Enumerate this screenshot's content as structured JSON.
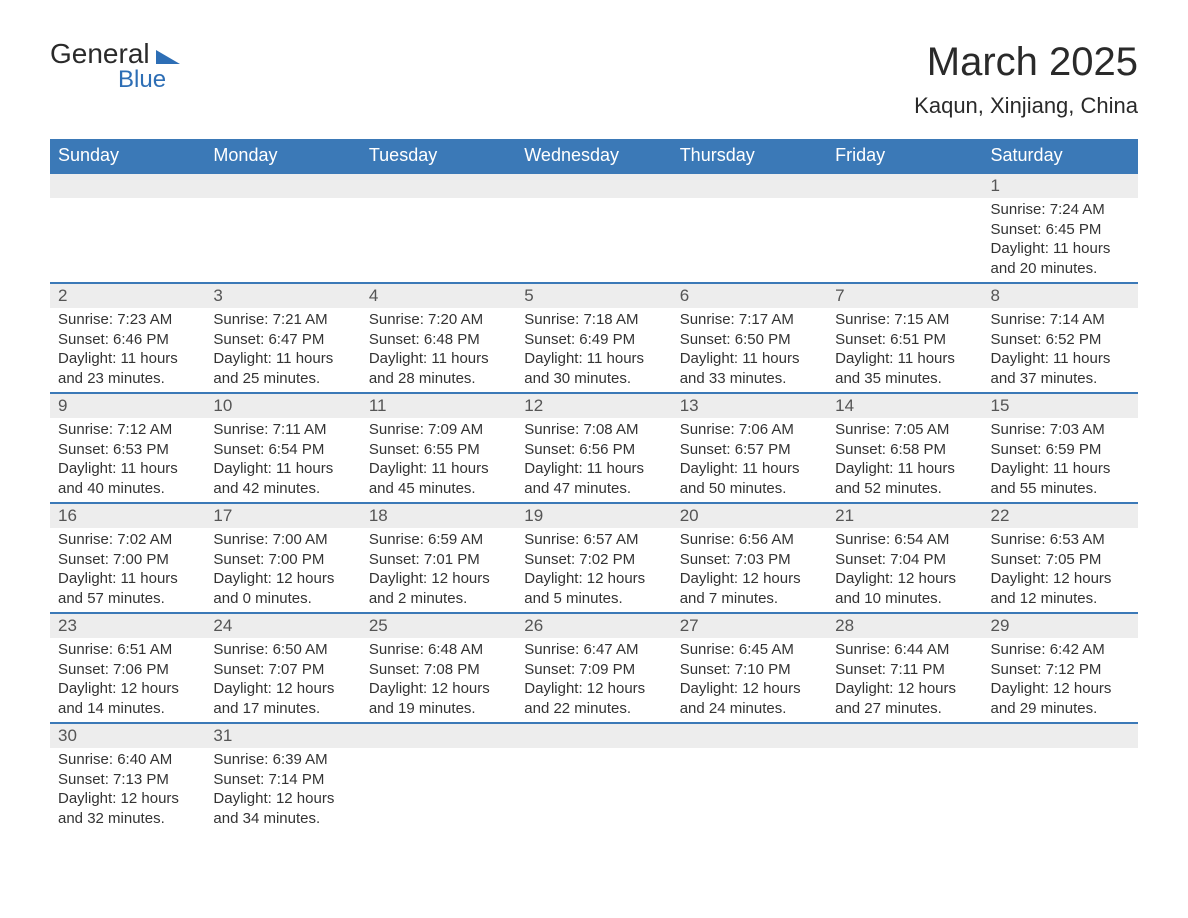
{
  "logo": {
    "text1": "General",
    "text2": "Blue"
  },
  "title": "March 2025",
  "location": "Kaqun, Xinjiang, China",
  "colors": {
    "header_bg": "#3b79b7",
    "header_text": "#ffffff",
    "daynum_bg": "#ededed",
    "border": "#3b79b7",
    "body_text": "#333333",
    "logo_blue": "#2d6eb5"
  },
  "day_headers": [
    "Sunday",
    "Monday",
    "Tuesday",
    "Wednesday",
    "Thursday",
    "Friday",
    "Saturday"
  ],
  "weeks": [
    {
      "nums": [
        "",
        "",
        "",
        "",
        "",
        "",
        "1"
      ],
      "data": [
        null,
        null,
        null,
        null,
        null,
        null,
        {
          "sunrise": "7:24 AM",
          "sunset": "6:45 PM",
          "dh": "11",
          "dm": "20"
        }
      ]
    },
    {
      "nums": [
        "2",
        "3",
        "4",
        "5",
        "6",
        "7",
        "8"
      ],
      "data": [
        {
          "sunrise": "7:23 AM",
          "sunset": "6:46 PM",
          "dh": "11",
          "dm": "23"
        },
        {
          "sunrise": "7:21 AM",
          "sunset": "6:47 PM",
          "dh": "11",
          "dm": "25"
        },
        {
          "sunrise": "7:20 AM",
          "sunset": "6:48 PM",
          "dh": "11",
          "dm": "28"
        },
        {
          "sunrise": "7:18 AM",
          "sunset": "6:49 PM",
          "dh": "11",
          "dm": "30"
        },
        {
          "sunrise": "7:17 AM",
          "sunset": "6:50 PM",
          "dh": "11",
          "dm": "33"
        },
        {
          "sunrise": "7:15 AM",
          "sunset": "6:51 PM",
          "dh": "11",
          "dm": "35"
        },
        {
          "sunrise": "7:14 AM",
          "sunset": "6:52 PM",
          "dh": "11",
          "dm": "37"
        }
      ]
    },
    {
      "nums": [
        "9",
        "10",
        "11",
        "12",
        "13",
        "14",
        "15"
      ],
      "data": [
        {
          "sunrise": "7:12 AM",
          "sunset": "6:53 PM",
          "dh": "11",
          "dm": "40"
        },
        {
          "sunrise": "7:11 AM",
          "sunset": "6:54 PM",
          "dh": "11",
          "dm": "42"
        },
        {
          "sunrise": "7:09 AM",
          "sunset": "6:55 PM",
          "dh": "11",
          "dm": "45"
        },
        {
          "sunrise": "7:08 AM",
          "sunset": "6:56 PM",
          "dh": "11",
          "dm": "47"
        },
        {
          "sunrise": "7:06 AM",
          "sunset": "6:57 PM",
          "dh": "11",
          "dm": "50"
        },
        {
          "sunrise": "7:05 AM",
          "sunset": "6:58 PM",
          "dh": "11",
          "dm": "52"
        },
        {
          "sunrise": "7:03 AM",
          "sunset": "6:59 PM",
          "dh": "11",
          "dm": "55"
        }
      ]
    },
    {
      "nums": [
        "16",
        "17",
        "18",
        "19",
        "20",
        "21",
        "22"
      ],
      "data": [
        {
          "sunrise": "7:02 AM",
          "sunset": "7:00 PM",
          "dh": "11",
          "dm": "57"
        },
        {
          "sunrise": "7:00 AM",
          "sunset": "7:00 PM",
          "dh": "12",
          "dm": "0"
        },
        {
          "sunrise": "6:59 AM",
          "sunset": "7:01 PM",
          "dh": "12",
          "dm": "2"
        },
        {
          "sunrise": "6:57 AM",
          "sunset": "7:02 PM",
          "dh": "12",
          "dm": "5"
        },
        {
          "sunrise": "6:56 AM",
          "sunset": "7:03 PM",
          "dh": "12",
          "dm": "7"
        },
        {
          "sunrise": "6:54 AM",
          "sunset": "7:04 PM",
          "dh": "12",
          "dm": "10"
        },
        {
          "sunrise": "6:53 AM",
          "sunset": "7:05 PM",
          "dh": "12",
          "dm": "12"
        }
      ]
    },
    {
      "nums": [
        "23",
        "24",
        "25",
        "26",
        "27",
        "28",
        "29"
      ],
      "data": [
        {
          "sunrise": "6:51 AM",
          "sunset": "7:06 PM",
          "dh": "12",
          "dm": "14"
        },
        {
          "sunrise": "6:50 AM",
          "sunset": "7:07 PM",
          "dh": "12",
          "dm": "17"
        },
        {
          "sunrise": "6:48 AM",
          "sunset": "7:08 PM",
          "dh": "12",
          "dm": "19"
        },
        {
          "sunrise": "6:47 AM",
          "sunset": "7:09 PM",
          "dh": "12",
          "dm": "22"
        },
        {
          "sunrise": "6:45 AM",
          "sunset": "7:10 PM",
          "dh": "12",
          "dm": "24"
        },
        {
          "sunrise": "6:44 AM",
          "sunset": "7:11 PM",
          "dh": "12",
          "dm": "27"
        },
        {
          "sunrise": "6:42 AM",
          "sunset": "7:12 PM",
          "dh": "12",
          "dm": "29"
        }
      ]
    },
    {
      "nums": [
        "30",
        "31",
        "",
        "",
        "",
        "",
        ""
      ],
      "data": [
        {
          "sunrise": "6:40 AM",
          "sunset": "7:13 PM",
          "dh": "12",
          "dm": "32"
        },
        {
          "sunrise": "6:39 AM",
          "sunset": "7:14 PM",
          "dh": "12",
          "dm": "34"
        },
        null,
        null,
        null,
        null,
        null
      ]
    }
  ],
  "labels": {
    "sunrise": "Sunrise: ",
    "sunset": "Sunset: ",
    "daylight1": "Daylight: ",
    "daylight2": " hours",
    "daylight3": "and ",
    "daylight4": " minutes."
  }
}
